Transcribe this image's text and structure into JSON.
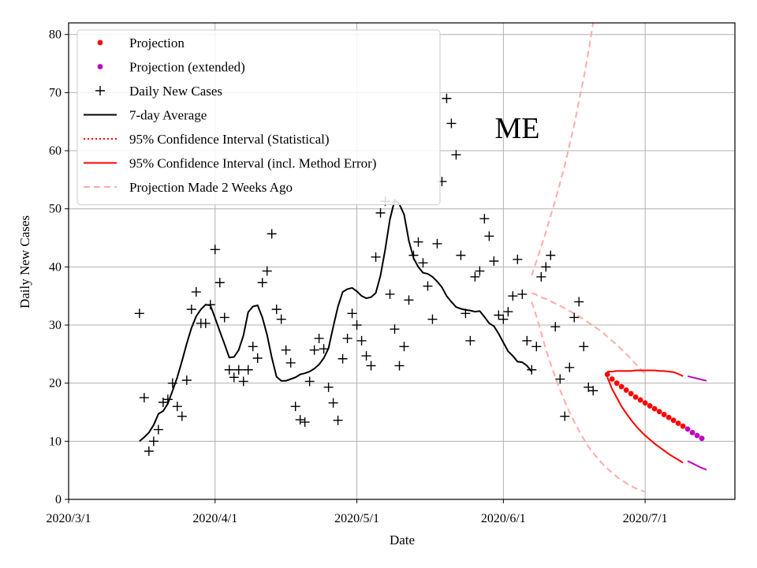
{
  "chart_data": {
    "type": "line",
    "xlabel": "Date",
    "ylabel": "Daily New Cases",
    "annotation": "ME",
    "x_range": [
      "2020-03-01",
      "2020-07-20"
    ],
    "ylim": [
      0,
      82
    ],
    "yticks": [
      0,
      10,
      20,
      30,
      40,
      50,
      60,
      70,
      80
    ],
    "xticks": [
      {
        "date": "2020-03-01",
        "label": "2020/3/1"
      },
      {
        "date": "2020-04-01",
        "label": "2020/4/1"
      },
      {
        "date": "2020-05-01",
        "label": "2020/5/1"
      },
      {
        "date": "2020-06-01",
        "label": "2020/6/1"
      },
      {
        "date": "2020-07-01",
        "label": "2020/7/1"
      }
    ],
    "grid": true,
    "legend_position": "top-left",
    "colors": {
      "projection": "#ff0000",
      "projection_extended": "#c000c0",
      "daily": "#000000",
      "average": "#000000",
      "ci": "#ff0000",
      "old_projection": "#ffaaaa"
    },
    "legend": [
      {
        "label": "Projection",
        "marker": "dot",
        "color": "#ff0000"
      },
      {
        "label": "Projection (extended)",
        "marker": "dot",
        "color": "#c000c0"
      },
      {
        "label": "Daily New Cases",
        "marker": "plus",
        "color": "#000000"
      },
      {
        "label": "7-day Average",
        "marker": "line",
        "color": "#000000"
      },
      {
        "label": "95% Confidence Interval (Statistical)",
        "marker": "dotted",
        "color": "#ff0000"
      },
      {
        "label": "95% Confidence Interval (incl. Method Error)",
        "marker": "solid",
        "color": "#ff0000"
      },
      {
        "label": "Projection Made 2 Weeks Ago",
        "marker": "dashed",
        "color": "#ffaaaa"
      }
    ],
    "daily_new_cases": {
      "start_date": "2020-03-16",
      "values": [
        32,
        17.5,
        8.3,
        10,
        12,
        16.7,
        17.2,
        20,
        16,
        14.3,
        20.5,
        32.7,
        35.7,
        30.3,
        30.3,
        33.5,
        43,
        37.3,
        31.3,
        22.3,
        21,
        22.3,
        20.3,
        22.3,
        26.3,
        24.3,
        37.3,
        39.3,
        45.7,
        32.7,
        31,
        25.7,
        23.5,
        16,
        13.7,
        13.3,
        20.3,
        25.7,
        27.7,
        25.9,
        19.3,
        16.6,
        13.6,
        24.2,
        27.7,
        32,
        30,
        27.3,
        24.7,
        23,
        41.7,
        49.3,
        51.3,
        35.3,
        29.3,
        23,
        26.3,
        34.3,
        42,
        44.3,
        40.7,
        36.7,
        31,
        44,
        54.7,
        69,
        64.7,
        59.3,
        42,
        32,
        27.3,
        38.3,
        39.3,
        48.3,
        45.3,
        41,
        31.7,
        31,
        32.3,
        35,
        41.3,
        35.3,
        27.3,
        22.3,
        26.3,
        38.3,
        40,
        42,
        29.7,
        20.7,
        14.3,
        22.7,
        31.3,
        34,
        26.3,
        19.3,
        18.7
      ]
    },
    "seven_day_average": {
      "start_date": "2020-03-16",
      "values": [
        10,
        10.7,
        11.5,
        12.8,
        14.7,
        15.2,
        16.5,
        18.7,
        21,
        23.8,
        26.8,
        29.5,
        31.5,
        32.7,
        33.5,
        33.4,
        31.2,
        28.9,
        26.7,
        24.4,
        24.5,
        25.7,
        28.2,
        32.2,
        33.2,
        33.4,
        31.3,
        28.3,
        24.4,
        21.1,
        20.4,
        20.4,
        20.7,
        21.0,
        21.5,
        21.7,
        22,
        22.5,
        23.2,
        24.3,
        26,
        29.7,
        33.2,
        35.7,
        36.2,
        36.4,
        35.8,
        35,
        34.6,
        34.8,
        35.5,
        38.5,
        43,
        48.2,
        51.5,
        50.8,
        49,
        44.5,
        41.5,
        40,
        39,
        38.8,
        38.3,
        37.5,
        36.5,
        35,
        34,
        33.1,
        32.8,
        32.6,
        32.5,
        32.3,
        32.4,
        31.4,
        30.3,
        29.8,
        28.5,
        27,
        25.5,
        24.7,
        23.7,
        23.6,
        23.0,
        22.0
      ]
    },
    "projection": {
      "start_date": "2020-06-23",
      "values": [
        21.5,
        20.7,
        20.0,
        19.4,
        18.8,
        18.2,
        17.6,
        17.1,
        16.6,
        16.1,
        15.6,
        15.1,
        14.6,
        14.1,
        13.6,
        13.1,
        12.6
      ]
    },
    "projection_extended": {
      "start_date": "2020-07-10",
      "values": [
        12.1,
        11.5,
        11.0,
        10.5
      ]
    },
    "ci_method_upper": {
      "start_date": "2020-06-23",
      "values": [
        22.0,
        22.0,
        22.1,
        22.1,
        22.1,
        22.1,
        22.2,
        22.2,
        22.2,
        22.2,
        22.2,
        22.1,
        22.1,
        22.0,
        21.9,
        21.6,
        21.2
      ]
    },
    "ci_method_lower": {
      "start_date": "2020-06-23",
      "values": [
        21.0,
        19.0,
        17.5,
        16.0,
        14.8,
        13.7,
        12.7,
        11.8,
        11.0,
        10.3,
        9.6,
        9.0,
        8.4,
        7.8,
        7.3,
        6.8,
        6.3
      ]
    },
    "ci_method_upper_extended": {
      "start_date": "2020-07-10",
      "values": [
        21.2,
        21.0,
        20.8,
        20.6,
        20.4
      ]
    },
    "ci_method_lower_extended": {
      "start_date": "2020-07-10",
      "values": [
        6.6,
        6.2,
        5.8,
        5.4,
        5.1
      ]
    },
    "old_projection_center": {
      "start_date": "2020-06-07",
      "values": [
        35.5,
        35.2,
        34.8,
        34.5,
        34.1,
        33.7,
        33.3,
        32.9,
        32.4,
        32.0,
        31.5,
        31.0,
        30.4,
        29.9,
        29.3,
        28.7,
        28.0,
        27.3,
        26.6,
        25.8,
        25.0,
        24.2,
        23.3,
        22.4,
        21.6
      ]
    },
    "old_projection_upper": {
      "start_date": "2020-06-07",
      "values": [
        38.5,
        41,
        43.5,
        46,
        48.8,
        51.5,
        54.5,
        57.5,
        61,
        64.5,
        68.5,
        72.5,
        77,
        82,
        87
      ]
    },
    "old_projection_lower": {
      "start_date": "2020-06-07",
      "values": [
        34.0,
        31.5,
        28.7,
        25.8,
        23.3,
        21.0,
        18.8,
        16.8,
        15.0,
        13.4,
        11.8,
        10.4,
        9.1,
        8.0,
        7.0,
        6.1,
        5.3,
        4.6,
        3.9,
        3.3,
        2.8,
        2.3,
        1.9,
        1.6,
        1.3
      ]
    }
  }
}
